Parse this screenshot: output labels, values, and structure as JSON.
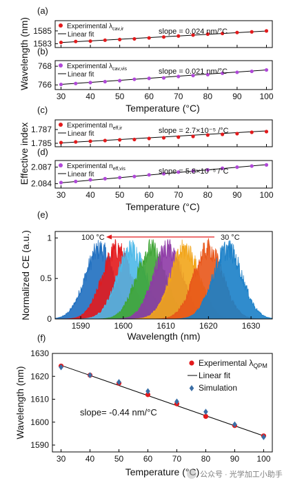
{
  "chart_data": [
    {
      "panel": "(a)",
      "type": "scatter",
      "xlim": [
        28,
        102
      ],
      "ylim": [
        1582.4,
        1586.6
      ],
      "yticks": [
        1583,
        1585
      ],
      "xticks": [],
      "grid": false,
      "legend_position": "top-left",
      "marker_color": "#e31a1c",
      "legend_experimental_prefix": "Experimental λ",
      "legend_experimental_sub": "cav,ir",
      "legend_fit": "Linear fit",
      "slope_text": "slope = 0.024 nm/°C",
      "x": [
        30,
        35,
        40,
        45,
        50,
        55,
        60,
        65,
        70,
        75,
        80,
        85,
        90,
        95,
        100
      ],
      "y": [
        1583.2,
        1583.35,
        1583.4,
        1583.55,
        1583.65,
        1583.75,
        1583.9,
        1584.05,
        1584.2,
        1584.35,
        1584.5,
        1584.6,
        1584.75,
        1584.85,
        1585.0
      ],
      "fit": [
        [
          30,
          1583.18
        ],
        [
          100,
          1584.98
        ]
      ]
    },
    {
      "panel": "(b)",
      "type": "scatter",
      "xlim": [
        28,
        102
      ],
      "ylim": [
        765.5,
        768.6
      ],
      "yticks": [
        766,
        768
      ],
      "xticks": [
        30,
        40,
        50,
        60,
        70,
        80,
        90,
        100
      ],
      "grid": false,
      "legend_position": "top-left",
      "marker_color": "#b048d8",
      "legend_experimental_prefix": "Experimental λ",
      "legend_experimental_sub": "cav,vis",
      "legend_fit": "Linear fit",
      "slope_text": "slope = 0.021 nm/°C",
      "x": [
        30,
        35,
        40,
        45,
        50,
        55,
        60,
        65,
        70,
        75,
        80,
        85,
        90,
        95,
        100
      ],
      "y": [
        766.05,
        766.15,
        766.25,
        766.35,
        766.45,
        766.6,
        766.7,
        766.75,
        766.9,
        767.0,
        767.1,
        767.25,
        767.35,
        767.45,
        767.6
      ],
      "fit": [
        [
          30,
          766.05
        ],
        [
          100,
          767.6
        ]
      ]
    },
    {
      "panel": "(c)",
      "type": "scatter",
      "xlim": [
        28,
        102
      ],
      "ylim": [
        1.7845,
        1.7884
      ],
      "yticks": [
        1.785,
        1.787
      ],
      "ytick_labels": [
        "1.785",
        "1.787"
      ],
      "xticks": [],
      "grid": false,
      "legend_position": "top-left",
      "marker_color": "#e31a1c",
      "legend_experimental_prefix": "Experimental n",
      "legend_experimental_sub": "eff,ir",
      "legend_fit": "Linear fit",
      "slope_text": "slope = 2.7×10⁻⁵ /°C",
      "x": [
        30,
        35,
        40,
        45,
        50,
        55,
        60,
        65,
        70,
        75,
        80,
        85,
        90,
        95,
        100
      ],
      "y": [
        1.7851,
        1.7852,
        1.7853,
        1.7854,
        1.7855,
        1.78555,
        1.7857,
        1.7858,
        1.7859,
        1.786,
        1.7862,
        1.7863,
        1.7864,
        1.7866,
        1.7867
      ],
      "fit": [
        [
          30,
          1.78505
        ],
        [
          100,
          1.7868
        ]
      ]
    },
    {
      "panel": "(d)",
      "type": "scatter",
      "xlim": [
        28,
        102
      ],
      "ylim": [
        2.0832,
        2.0882
      ],
      "yticks": [
        2.084,
        2.087
      ],
      "ytick_labels": [
        "2.084",
        "2.087"
      ],
      "xticks": [
        30,
        40,
        50,
        60,
        70,
        80,
        90,
        100
      ],
      "grid": false,
      "legend_position": "top-left",
      "marker_color": "#b048d8",
      "legend_experimental_prefix": "Experimental n",
      "legend_experimental_sub": "eff,vis",
      "legend_fit": "Linear fit",
      "slope_text": "slope = 5.8×10⁻⁵ /°C",
      "x": [
        30,
        35,
        40,
        45,
        50,
        55,
        60,
        65,
        70,
        75,
        80,
        85,
        90,
        95,
        100
      ],
      "y": [
        2.0842,
        2.0844,
        2.0847,
        2.0849,
        2.0851,
        2.0853,
        2.0856,
        2.0858,
        2.0861,
        2.0863,
        2.0865,
        2.0868,
        2.087,
        2.0872,
        2.0874
      ],
      "fit": [
        [
          30,
          2.08415
        ],
        [
          100,
          2.08745
        ]
      ]
    },
    {
      "panel": "(e)",
      "type": "area",
      "xlim": [
        1584,
        1635
      ],
      "ylim": [
        0,
        1.08
      ],
      "xticks": [
        1590,
        1600,
        1610,
        1620,
        1630
      ],
      "yticks": [
        0,
        0.5,
        1
      ],
      "ytick_labels": [
        "0",
        "0.5",
        "1"
      ],
      "xlabel": "Wavelength (nm)",
      "ylabel": "Normalized CE (a.u.)",
      "grid": false,
      "arrow_left_label": "100 °C",
      "arrow_right_label": "30 °C",
      "arrow_color": "#e31a1c",
      "series": [
        {
          "center": 1594.5,
          "color": "#1f6fc0"
        },
        {
          "center": 1598.5,
          "color": "#e31a1c"
        },
        {
          "center": 1602.0,
          "color": "#4cb8e8"
        },
        {
          "center": 1606.5,
          "color": "#3fa535"
        },
        {
          "center": 1610.5,
          "color": "#8e3aa6"
        },
        {
          "center": 1614.5,
          "color": "#f2a51a"
        },
        {
          "center": 1620.0,
          "color": "#e8561a"
        },
        {
          "center": 1624.5,
          "color": "#1a7fc8"
        }
      ]
    },
    {
      "panel": "(f)",
      "type": "scatter",
      "xlim": [
        27,
        103
      ],
      "ylim": [
        1587,
        1630
      ],
      "xticks": [
        30,
        40,
        50,
        60,
        70,
        80,
        90,
        100
      ],
      "yticks": [
        1590,
        1600,
        1610,
        1620,
        1630
      ],
      "xlabel": "Temperature (°C)",
      "ylabel": "Wavelength (nm)",
      "grid": false,
      "legend_position": "top-right",
      "legend_experimental_prefix": "Experimental λ",
      "legend_experimental_sub": "QPM",
      "legend_fit": "Linear fit",
      "legend_simulation": "Simulation",
      "slope_text": "slope= -0.44 nm/°C",
      "experimental_color": "#e31a1c",
      "simulation_color": "#3b6ea5",
      "x": [
        30,
        40,
        50,
        60,
        70,
        80,
        90,
        100
      ],
      "experimental": [
        1624.5,
        1620.5,
        1617.0,
        1612.0,
        1608.0,
        1602.5,
        1598.5,
        1594.0
      ],
      "simulation": [
        1624.0,
        1620.5,
        1617.5,
        1613.5,
        1609.0,
        1604.5,
        1599.0,
        1593.5
      ],
      "fit": [
        [
          30,
          1624.8
        ],
        [
          100,
          1594.0
        ]
      ]
    }
  ],
  "shared": {
    "wavelength_label_ab": "Wavelength (nm)",
    "effective_index_label_cd": "Effective index",
    "temperature_label": "Temperature (°C)"
  },
  "watermark": "公众号 · 光学加工小助手"
}
